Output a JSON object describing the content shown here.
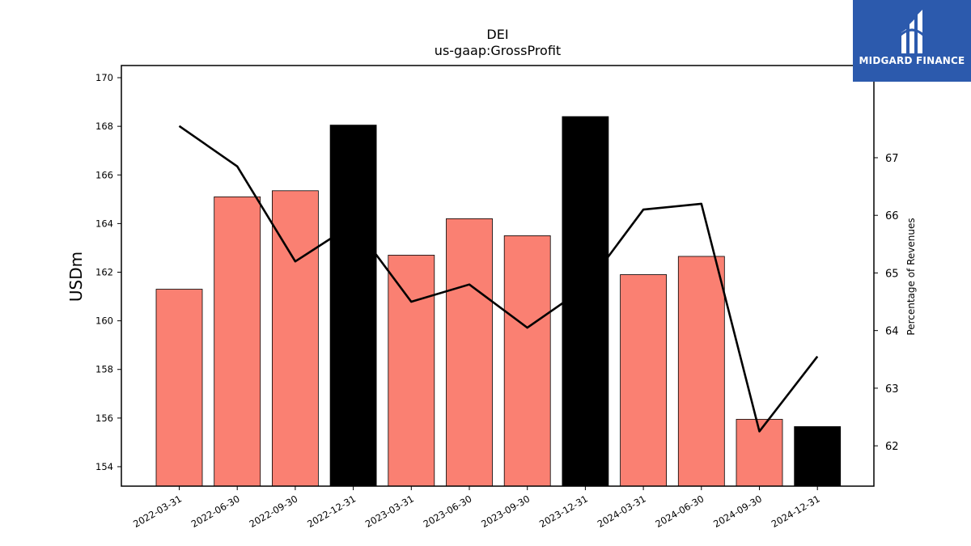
{
  "chart_data": {
    "type": "bar",
    "title": "DEI",
    "subtitle": "us-gaap:GrossProfit",
    "ylabel": "USDm",
    "y2label": "Percentage of Revenues",
    "categories": [
      "2022-03-31",
      "2022-06-30",
      "2022-09-30",
      "2022-12-31",
      "2023-03-31",
      "2023-06-30",
      "2023-09-30",
      "2023-12-31",
      "2024-03-31",
      "2024-06-30",
      "2024-09-30",
      "2024-12-31"
    ],
    "series": [
      {
        "type": "bar",
        "values": [
          161.3,
          165.1,
          165.35,
          168.05,
          162.7,
          164.2,
          163.5,
          168.4,
          161.9,
          162.65,
          155.95,
          155.65
        ],
        "colors": [
          "#fa8072",
          "#fa8072",
          "#fa8072",
          "#000000",
          "#fa8072",
          "#fa8072",
          "#fa8072",
          "#000000",
          "#fa8072",
          "#fa8072",
          "#fa8072",
          "#000000"
        ]
      },
      {
        "type": "line",
        "axis": "right",
        "values": [
          67.55,
          66.85,
          65.2,
          65.85,
          64.5,
          64.8,
          64.05,
          64.75,
          66.1,
          66.2,
          62.25,
          63.55
        ],
        "color": "#000000"
      }
    ],
    "ylim": [
      153.2,
      170.5
    ],
    "yticks": [
      154,
      156,
      158,
      160,
      162,
      164,
      166,
      168,
      170
    ],
    "y2lim": [
      61.3,
      68.6
    ],
    "y2ticks": [
      62,
      63,
      64,
      65,
      66,
      67
    ],
    "grid": false
  },
  "logo": {
    "text": "MIDGARD FINANCE",
    "background": "#2c5aad"
  }
}
